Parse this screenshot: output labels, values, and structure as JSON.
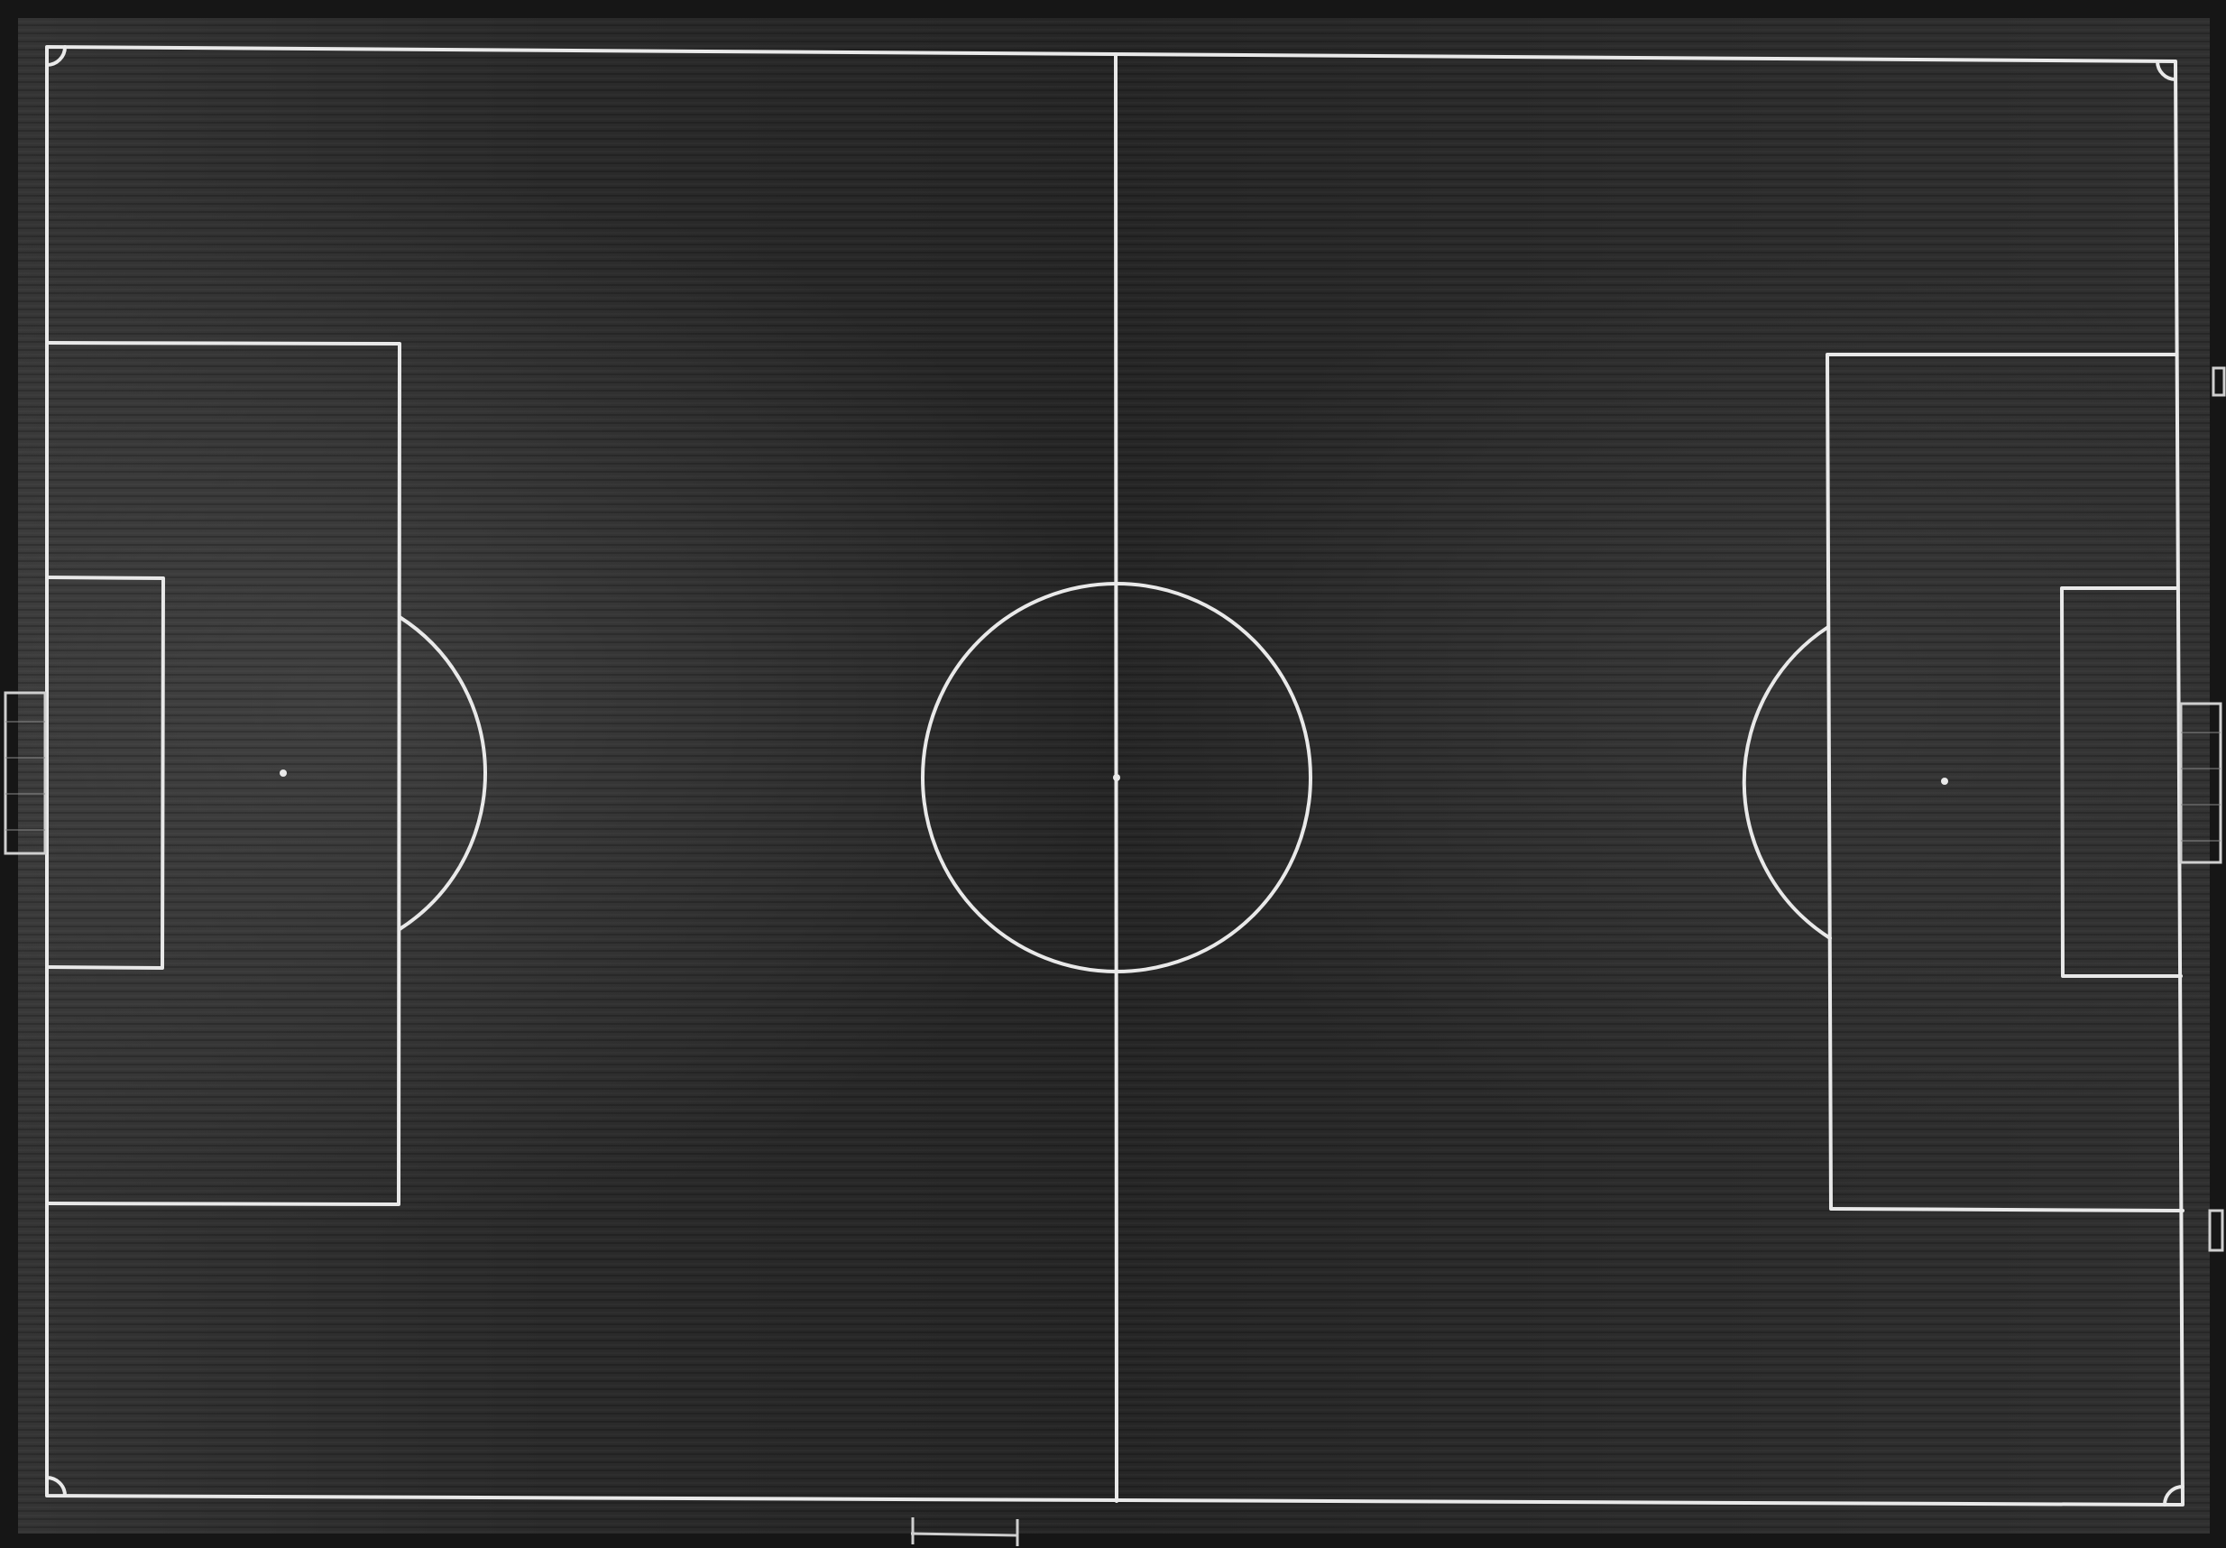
{
  "scene": {
    "subject": "overhead-football-pitch",
    "color_mode": "monochrome",
    "colors": {
      "turf_dark": "#222222",
      "turf_light": "#3a3a3a",
      "surround": "#161616",
      "markings": "#e9e9e9"
    }
  }
}
